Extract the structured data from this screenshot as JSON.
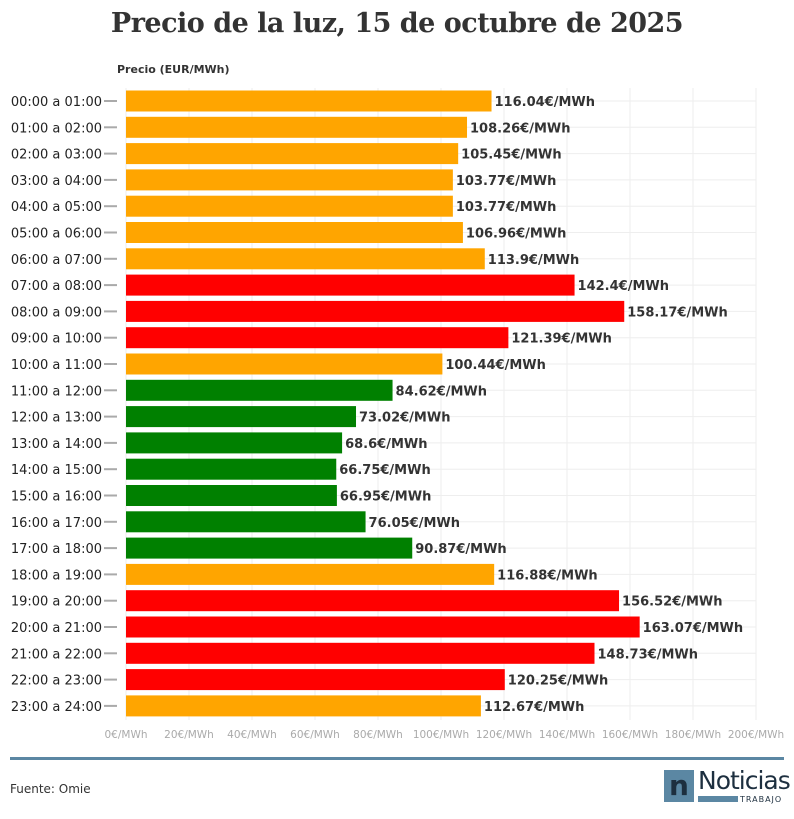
{
  "chart_data": {
    "type": "bar",
    "orientation": "horizontal",
    "title": "Precio de la luz, 15 de octubre de 2025",
    "xlabel": "Precio (EUR/MWh)",
    "ylabel": "",
    "xlim": [
      0,
      200
    ],
    "grid": true,
    "x_ticks": [
      "0€/MWh",
      "20€/MWh",
      "40€/MWh",
      "60€/MWh",
      "80€/MWh",
      "100€/MWh",
      "120€/MWh",
      "140€/MWh",
      "160€/MWh",
      "180€/MWh",
      "200€/MWh"
    ],
    "categories": [
      "00:00 a 01:00",
      "01:00 a 02:00",
      "02:00 a 03:00",
      "03:00 a 04:00",
      "04:00 a 05:00",
      "05:00 a 06:00",
      "06:00 a 07:00",
      "07:00 a 08:00",
      "08:00 a 09:00",
      "09:00 a 10:00",
      "10:00 a 11:00",
      "11:00 a 12:00",
      "12:00 a 13:00",
      "13:00 a 14:00",
      "14:00 a 15:00",
      "15:00 a 16:00",
      "16:00 a 17:00",
      "17:00 a 18:00",
      "18:00 a 19:00",
      "19:00 a 20:00",
      "20:00 a 21:00",
      "21:00 a 22:00",
      "22:00 a 23:00",
      "23:00 a 24:00"
    ],
    "values": [
      116.04,
      108.26,
      105.45,
      103.77,
      103.77,
      106.96,
      113.9,
      142.4,
      158.17,
      121.39,
      100.44,
      84.62,
      73.02,
      68.6,
      66.75,
      66.95,
      76.05,
      90.87,
      116.88,
      156.52,
      163.07,
      148.73,
      120.25,
      112.67
    ],
    "data_labels": [
      "116.04€/MWh",
      "108.26€/MWh",
      "105.45€/MWh",
      "103.77€/MWh",
      "103.77€/MWh",
      "106.96€/MWh",
      "113.9€/MWh",
      "142.4€/MWh",
      "158.17€/MWh",
      "121.39€/MWh",
      "100.44€/MWh",
      "84.62€/MWh",
      "73.02€/MWh",
      "68.6€/MWh",
      "66.75€/MWh",
      "66.95€/MWh",
      "76.05€/MWh",
      "90.87€/MWh",
      "116.88€/MWh",
      "156.52€/MWh",
      "163.07€/MWh",
      "148.73€/MWh",
      "120.25€/MWh",
      "112.67€/MWh"
    ],
    "bar_colors": [
      "#ffa500",
      "#ffa500",
      "#ffa500",
      "#ffa500",
      "#ffa500",
      "#ffa500",
      "#ffa500",
      "#ff0000",
      "#ff0000",
      "#ff0000",
      "#ffa500",
      "#008000",
      "#008000",
      "#008000",
      "#008000",
      "#008000",
      "#008000",
      "#008000",
      "#ffa500",
      "#ff0000",
      "#ff0000",
      "#ff0000",
      "#ff0000",
      "#ffa500"
    ]
  },
  "footer": {
    "source": "Fuente: Omie",
    "logo_text": "Noticias",
    "logo_sub": "TRABAJO",
    "logo_letter": "n"
  }
}
